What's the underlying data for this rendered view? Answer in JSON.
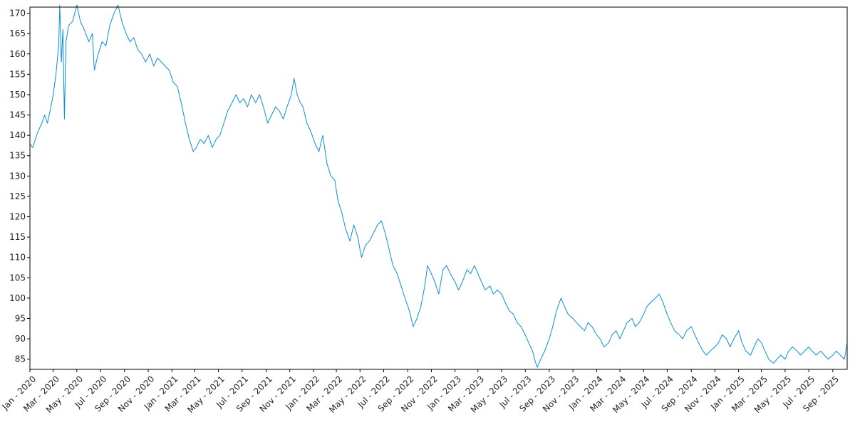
{
  "chart_data": {
    "type": "line",
    "title": "",
    "xlabel": "",
    "ylabel": "",
    "xlim": [
      "2020-01-01",
      "2025-10-08"
    ],
    "ylim": [
      82.5,
      171.5
    ],
    "grid": false,
    "line_color": "#0a8fd8",
    "y_ticks": [
      85,
      90,
      95,
      100,
      105,
      110,
      115,
      120,
      125,
      130,
      135,
      140,
      145,
      150,
      155,
      160,
      165,
      170
    ],
    "x_ticks": [
      {
        "date": "2020-01-01",
        "label": "Jan - 2020"
      },
      {
        "date": "2020-03-01",
        "label": "Mar - 2020"
      },
      {
        "date": "2020-05-01",
        "label": "May - 2020"
      },
      {
        "date": "2020-07-01",
        "label": "Jul - 2020"
      },
      {
        "date": "2020-09-01",
        "label": "Sep - 2020"
      },
      {
        "date": "2020-11-01",
        "label": "Nov - 2020"
      },
      {
        "date": "2021-01-01",
        "label": "Jan - 2021"
      },
      {
        "date": "2021-03-01",
        "label": "Mar - 2021"
      },
      {
        "date": "2021-05-01",
        "label": "May - 2021"
      },
      {
        "date": "2021-07-01",
        "label": "Jul - 2021"
      },
      {
        "date": "2021-09-01",
        "label": "Sep - 2021"
      },
      {
        "date": "2021-11-01",
        "label": "Nov - 2021"
      },
      {
        "date": "2022-01-01",
        "label": "Jan - 2022"
      },
      {
        "date": "2022-03-01",
        "label": "Mar - 2022"
      },
      {
        "date": "2022-05-01",
        "label": "May - 2022"
      },
      {
        "date": "2022-07-01",
        "label": "Jul - 2022"
      },
      {
        "date": "2022-09-01",
        "label": "Sep - 2022"
      },
      {
        "date": "2022-11-01",
        "label": "Nov - 2022"
      },
      {
        "date": "2023-01-01",
        "label": "Jan - 2023"
      },
      {
        "date": "2023-03-01",
        "label": "Mar - 2023"
      },
      {
        "date": "2023-05-01",
        "label": "May - 2023"
      },
      {
        "date": "2023-07-01",
        "label": "Jul - 2023"
      },
      {
        "date": "2023-09-01",
        "label": "Sep - 2023"
      },
      {
        "date": "2023-11-01",
        "label": "Nov - 2023"
      },
      {
        "date": "2024-01-01",
        "label": "Jan - 2024"
      },
      {
        "date": "2024-03-01",
        "label": "Mar - 2024"
      },
      {
        "date": "2024-05-01",
        "label": "May - 2024"
      },
      {
        "date": "2024-07-01",
        "label": "Jul - 2024"
      },
      {
        "date": "2024-09-01",
        "label": "Sep - 2024"
      },
      {
        "date": "2024-11-01",
        "label": "Nov - 2024"
      },
      {
        "date": "2025-01-01",
        "label": "Jan - 2025"
      },
      {
        "date": "2025-03-01",
        "label": "Mar - 2025"
      },
      {
        "date": "2025-05-01",
        "label": "May - 2025"
      },
      {
        "date": "2025-07-01",
        "label": "Jul - 2025"
      },
      {
        "date": "2025-09-01",
        "label": "Sep - 2025"
      }
    ],
    "series": [
      {
        "points": [
          [
            "2020-01-01",
            138
          ],
          [
            "2020-01-08",
            137
          ],
          [
            "2020-01-15",
            139
          ],
          [
            "2020-01-22",
            141
          ],
          [
            "2020-02-01",
            143
          ],
          [
            "2020-02-08",
            145
          ],
          [
            "2020-02-15",
            143
          ],
          [
            "2020-02-22",
            146
          ],
          [
            "2020-03-01",
            150
          ],
          [
            "2020-03-08",
            155
          ],
          [
            "2020-03-15",
            162
          ],
          [
            "2020-03-18",
            172
          ],
          [
            "2020-03-22",
            158
          ],
          [
            "2020-03-26",
            166
          ],
          [
            "2020-03-30",
            144
          ],
          [
            "2020-04-03",
            163
          ],
          [
            "2020-04-10",
            167
          ],
          [
            "2020-04-20",
            168
          ],
          [
            "2020-05-01",
            172
          ],
          [
            "2020-05-10",
            168
          ],
          [
            "2020-05-20",
            166
          ],
          [
            "2020-06-01",
            163
          ],
          [
            "2020-06-10",
            165
          ],
          [
            "2020-06-15",
            156
          ],
          [
            "2020-06-25",
            160
          ],
          [
            "2020-07-05",
            163
          ],
          [
            "2020-07-15",
            162
          ],
          [
            "2020-07-25",
            167
          ],
          [
            "2020-08-05",
            170
          ],
          [
            "2020-08-15",
            172
          ],
          [
            "2020-08-25",
            168
          ],
          [
            "2020-09-05",
            165
          ],
          [
            "2020-09-15",
            163
          ],
          [
            "2020-09-25",
            164
          ],
          [
            "2020-10-05",
            161
          ],
          [
            "2020-10-15",
            160
          ],
          [
            "2020-10-25",
            158
          ],
          [
            "2020-11-05",
            160
          ],
          [
            "2020-11-15",
            157
          ],
          [
            "2020-11-25",
            159
          ],
          [
            "2020-12-05",
            158
          ],
          [
            "2020-12-15",
            157
          ],
          [
            "2020-12-25",
            156
          ],
          [
            "2021-01-05",
            153
          ],
          [
            "2021-01-15",
            152
          ],
          [
            "2021-01-25",
            148
          ],
          [
            "2021-02-05",
            143
          ],
          [
            "2021-02-15",
            139
          ],
          [
            "2021-02-25",
            136
          ],
          [
            "2021-03-05",
            137
          ],
          [
            "2021-03-15",
            139
          ],
          [
            "2021-03-25",
            138
          ],
          [
            "2021-04-05",
            140
          ],
          [
            "2021-04-15",
            137
          ],
          [
            "2021-04-25",
            139
          ],
          [
            "2021-05-05",
            140
          ],
          [
            "2021-05-15",
            143
          ],
          [
            "2021-05-25",
            146
          ],
          [
            "2021-06-05",
            148
          ],
          [
            "2021-06-15",
            150
          ],
          [
            "2021-06-25",
            148
          ],
          [
            "2021-07-05",
            149
          ],
          [
            "2021-07-15",
            147
          ],
          [
            "2021-07-25",
            150
          ],
          [
            "2021-08-05",
            148
          ],
          [
            "2021-08-15",
            150
          ],
          [
            "2021-08-25",
            147
          ],
          [
            "2021-09-05",
            143
          ],
          [
            "2021-09-15",
            145
          ],
          [
            "2021-09-25",
            147
          ],
          [
            "2021-10-05",
            146
          ],
          [
            "2021-10-15",
            144
          ],
          [
            "2021-10-25",
            147
          ],
          [
            "2021-11-05",
            150
          ],
          [
            "2021-11-12",
            154
          ],
          [
            "2021-11-20",
            150
          ],
          [
            "2021-11-28",
            148
          ],
          [
            "2021-12-05",
            147
          ],
          [
            "2021-12-15",
            143
          ],
          [
            "2021-12-25",
            141
          ],
          [
            "2022-01-05",
            138
          ],
          [
            "2022-01-15",
            136
          ],
          [
            "2022-01-25",
            140
          ],
          [
            "2022-02-05",
            133
          ],
          [
            "2022-02-15",
            130
          ],
          [
            "2022-02-25",
            129
          ],
          [
            "2022-03-05",
            124
          ],
          [
            "2022-03-15",
            121
          ],
          [
            "2022-03-25",
            117
          ],
          [
            "2022-04-05",
            114
          ],
          [
            "2022-04-15",
            118
          ],
          [
            "2022-04-25",
            115
          ],
          [
            "2022-05-05",
            110
          ],
          [
            "2022-05-15",
            113
          ],
          [
            "2022-05-25",
            114
          ],
          [
            "2022-06-05",
            116
          ],
          [
            "2022-06-15",
            118
          ],
          [
            "2022-06-25",
            119
          ],
          [
            "2022-07-05",
            116
          ],
          [
            "2022-07-15",
            112
          ],
          [
            "2022-07-25",
            108
          ],
          [
            "2022-08-05",
            106
          ],
          [
            "2022-08-15",
            103
          ],
          [
            "2022-08-25",
            100
          ],
          [
            "2022-09-05",
            97
          ],
          [
            "2022-09-15",
            93
          ],
          [
            "2022-09-25",
            95
          ],
          [
            "2022-10-05",
            98
          ],
          [
            "2022-10-15",
            103
          ],
          [
            "2022-10-22",
            108
          ],
          [
            "2022-11-01",
            106
          ],
          [
            "2022-11-10",
            104
          ],
          [
            "2022-11-20",
            101
          ],
          [
            "2022-12-01",
            107
          ],
          [
            "2022-12-10",
            108
          ],
          [
            "2022-12-20",
            106
          ],
          [
            "2023-01-01",
            104
          ],
          [
            "2023-01-10",
            102
          ],
          [
            "2023-01-20",
            104
          ],
          [
            "2023-02-01",
            107
          ],
          [
            "2023-02-10",
            106
          ],
          [
            "2023-02-20",
            108
          ],
          [
            "2023-03-01",
            106
          ],
          [
            "2023-03-10",
            104
          ],
          [
            "2023-03-20",
            102
          ],
          [
            "2023-04-01",
            103
          ],
          [
            "2023-04-10",
            101
          ],
          [
            "2023-04-20",
            102
          ],
          [
            "2023-05-01",
            101
          ],
          [
            "2023-05-10",
            99
          ],
          [
            "2023-05-20",
            97
          ],
          [
            "2023-06-01",
            96
          ],
          [
            "2023-06-10",
            94
          ],
          [
            "2023-06-20",
            93
          ],
          [
            "2023-07-01",
            91
          ],
          [
            "2023-07-10",
            89
          ],
          [
            "2023-07-20",
            87
          ],
          [
            "2023-07-25",
            85
          ],
          [
            "2023-08-01",
            83
          ],
          [
            "2023-08-10",
            85
          ],
          [
            "2023-08-20",
            87
          ],
          [
            "2023-09-01",
            90
          ],
          [
            "2023-09-10",
            93
          ],
          [
            "2023-09-20",
            97
          ],
          [
            "2023-10-01",
            100
          ],
          [
            "2023-10-10",
            98
          ],
          [
            "2023-10-20",
            96
          ],
          [
            "2023-11-01",
            95
          ],
          [
            "2023-11-10",
            94
          ],
          [
            "2023-11-20",
            93
          ],
          [
            "2023-12-01",
            92
          ],
          [
            "2023-12-10",
            94
          ],
          [
            "2023-12-20",
            93
          ],
          [
            "2024-01-01",
            91
          ],
          [
            "2024-01-10",
            90
          ],
          [
            "2024-01-20",
            88
          ],
          [
            "2024-02-01",
            89
          ],
          [
            "2024-02-10",
            91
          ],
          [
            "2024-02-20",
            92
          ],
          [
            "2024-03-01",
            90
          ],
          [
            "2024-03-10",
            92
          ],
          [
            "2024-03-20",
            94
          ],
          [
            "2024-04-01",
            95
          ],
          [
            "2024-04-10",
            93
          ],
          [
            "2024-04-20",
            94
          ],
          [
            "2024-05-01",
            96
          ],
          [
            "2024-05-10",
            98
          ],
          [
            "2024-05-20",
            99
          ],
          [
            "2024-06-01",
            100
          ],
          [
            "2024-06-10",
            101
          ],
          [
            "2024-06-20",
            99
          ],
          [
            "2024-07-01",
            96
          ],
          [
            "2024-07-10",
            94
          ],
          [
            "2024-07-20",
            92
          ],
          [
            "2024-08-01",
            91
          ],
          [
            "2024-08-10",
            90
          ],
          [
            "2024-08-20",
            92
          ],
          [
            "2024-09-01",
            93
          ],
          [
            "2024-09-10",
            91
          ],
          [
            "2024-09-20",
            89
          ],
          [
            "2024-10-01",
            87
          ],
          [
            "2024-10-10",
            86
          ],
          [
            "2024-10-20",
            87
          ],
          [
            "2024-11-01",
            88
          ],
          [
            "2024-11-10",
            89
          ],
          [
            "2024-11-20",
            91
          ],
          [
            "2024-12-01",
            90
          ],
          [
            "2024-12-10",
            88
          ],
          [
            "2024-12-20",
            90
          ],
          [
            "2025-01-01",
            92
          ],
          [
            "2025-01-10",
            89
          ],
          [
            "2025-01-20",
            87
          ],
          [
            "2025-02-01",
            86
          ],
          [
            "2025-02-10",
            88
          ],
          [
            "2025-02-20",
            90
          ],
          [
            "2025-03-01",
            89
          ],
          [
            "2025-03-10",
            87
          ],
          [
            "2025-03-20",
            85
          ],
          [
            "2025-04-01",
            84
          ],
          [
            "2025-04-10",
            85
          ],
          [
            "2025-04-20",
            86
          ],
          [
            "2025-05-01",
            85
          ],
          [
            "2025-05-10",
            87
          ],
          [
            "2025-05-20",
            88
          ],
          [
            "2025-06-01",
            87
          ],
          [
            "2025-06-10",
            86
          ],
          [
            "2025-06-20",
            87
          ],
          [
            "2025-07-01",
            88
          ],
          [
            "2025-07-10",
            87
          ],
          [
            "2025-07-20",
            86
          ],
          [
            "2025-08-01",
            87
          ],
          [
            "2025-08-10",
            86
          ],
          [
            "2025-08-20",
            85
          ],
          [
            "2025-09-01",
            86
          ],
          [
            "2025-09-10",
            87
          ],
          [
            "2025-09-20",
            86
          ],
          [
            "2025-10-01",
            85
          ],
          [
            "2025-10-08",
            89
          ]
        ]
      }
    ]
  }
}
